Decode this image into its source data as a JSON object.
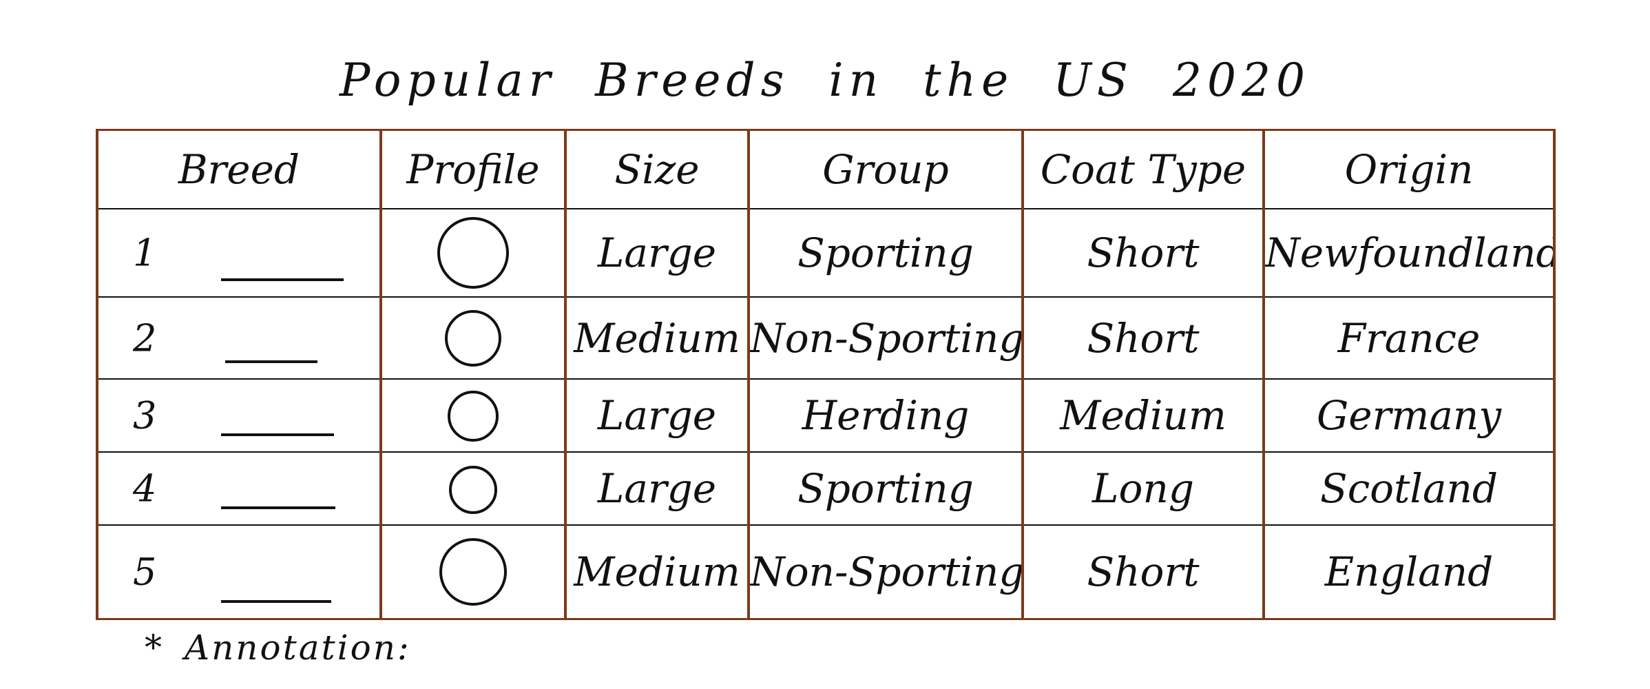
{
  "title": "Popular Breeds in the US 2020",
  "table": {
    "columns": [
      "Breed",
      "Profile",
      "Size",
      "Group",
      "Coat Type",
      "Origin"
    ],
    "rows": [
      {
        "rank": "1",
        "breed": "",
        "size": "Large",
        "group": "Sporting",
        "coat": "Short",
        "origin": "Newfoundland"
      },
      {
        "rank": "2",
        "breed": "",
        "size": "Medium",
        "group": "Non-Sporting",
        "coat": "Short",
        "origin": "France"
      },
      {
        "rank": "3",
        "breed": "",
        "size": "Large",
        "group": "Herding",
        "coat": "Medium",
        "origin": "Germany"
      },
      {
        "rank": "4",
        "breed": "",
        "size": "Large",
        "group": "Sporting",
        "coat": "Long",
        "origin": "Scotland"
      },
      {
        "rank": "5",
        "breed": "",
        "size": "Medium",
        "group": "Non-Sporting",
        "coat": "Short",
        "origin": "England"
      }
    ]
  },
  "annotation": {
    "marker": "*",
    "label": "Annotation:"
  },
  "colors": {
    "ink": "#111111",
    "grid": "#7b3a1a",
    "background": "#ffffff"
  }
}
